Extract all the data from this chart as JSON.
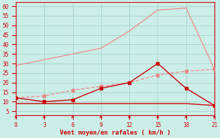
{
  "xlabel": "Vent moyen/en rafales ( km/h )",
  "background_color": "#cceee8",
  "grid_color": "#aad4ce",
  "x_ticks": [
    0,
    3,
    6,
    9,
    12,
    15,
    18,
    21
  ],
  "y_ticks": [
    5,
    10,
    15,
    20,
    25,
    30,
    35,
    40,
    45,
    50,
    55,
    60
  ],
  "ylim": [
    3,
    62
  ],
  "xlim": [
    0,
    21
  ],
  "line_light_x": [
    0,
    3,
    6,
    9,
    12,
    15,
    18,
    21
  ],
  "line_light_y": [
    29,
    32,
    35,
    38,
    47,
    58,
    59,
    27
  ],
  "line_medium_x": [
    0,
    3,
    6,
    9,
    12,
    15,
    18,
    21
  ],
  "line_medium_y": [
    12,
    13,
    16,
    18,
    20,
    24,
    26,
    27
  ],
  "line_dark_x": [
    0,
    3,
    6,
    9,
    12,
    15,
    18,
    21
  ],
  "line_dark_y": [
    12,
    10,
    11,
    17,
    20,
    30,
    17,
    8
  ],
  "line_flat_x": [
    0,
    3,
    6,
    9,
    12,
    15,
    18,
    21
  ],
  "line_flat_y": [
    9,
    9,
    9,
    9,
    9,
    9,
    9,
    8
  ],
  "light_color": "#f08080",
  "medium_color": "#f08080",
  "dark_color": "#cc0000",
  "flat_color": "#cc0000",
  "tick_color": "#cc0000",
  "label_color": "#cc0000"
}
